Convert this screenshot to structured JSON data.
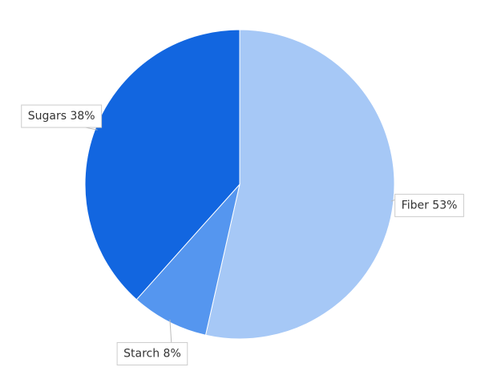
{
  "chart_data": {
    "type": "pie",
    "values": [
      53,
      8,
      38
    ],
    "value_labels": [
      "Fiber 53%",
      "Starch 8%",
      "Sugars 38%"
    ],
    "colors": [
      "#a6c8f6",
      "#5596ef",
      "#1266e0"
    ]
  }
}
